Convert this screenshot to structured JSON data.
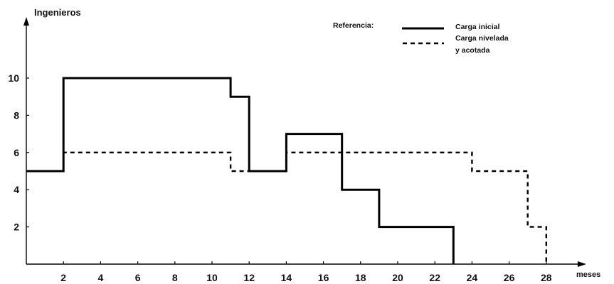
{
  "chart_data": {
    "type": "line",
    "step": true,
    "ylabel": "Ingenieros",
    "xlabel": "meses",
    "xlim": [
      0,
      29
    ],
    "ylim": [
      0,
      12
    ],
    "x_ticks": [
      2,
      4,
      6,
      8,
      10,
      12,
      14,
      16,
      18,
      20,
      22,
      24,
      26,
      28
    ],
    "y_ticks": [
      2,
      4,
      6,
      8,
      10
    ],
    "legend_title": "Referencia:",
    "legend_position": "top-right",
    "series": [
      {
        "name": "Carga inicial",
        "style": "solid",
        "color": "#000000",
        "x": [
          0,
          2,
          11,
          12,
          14,
          17,
          19,
          23,
          23
        ],
        "y": [
          5,
          10,
          9,
          5,
          7,
          4,
          2,
          0,
          0
        ]
      },
      {
        "name": "Carga nivelada y acotada",
        "style": "dashed",
        "color": "#000000",
        "x": [
          0,
          2,
          11,
          12,
          14,
          24,
          27,
          28,
          28
        ],
        "y": [
          5,
          6,
          5,
          5,
          6,
          5,
          2,
          0,
          0
        ]
      }
    ],
    "legend_labels": [
      "Carga inicial",
      "Carga nivelada",
      "y acotada"
    ]
  }
}
